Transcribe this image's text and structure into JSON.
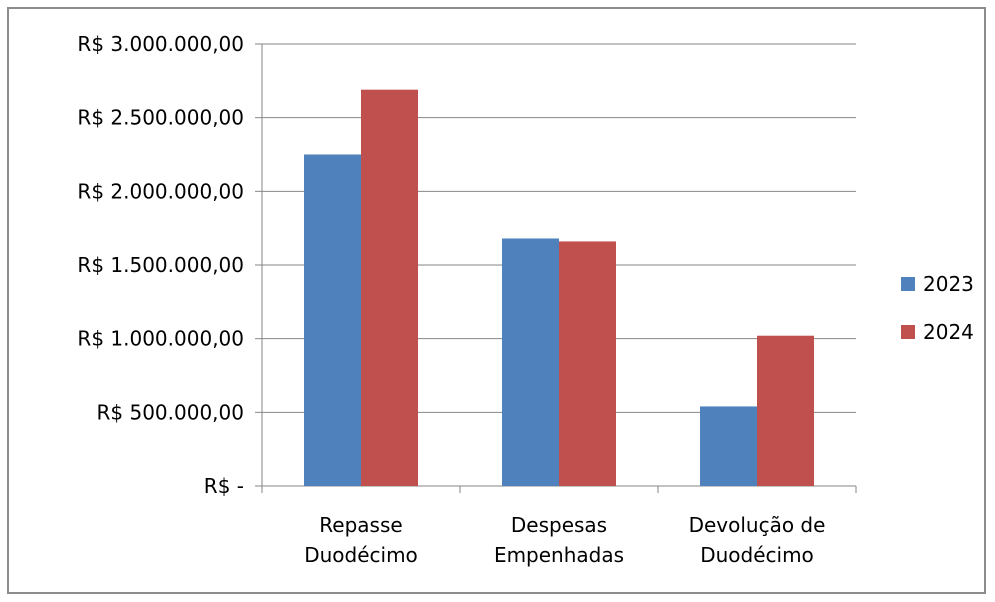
{
  "chart_data": {
    "type": "bar",
    "categories": [
      [
        "Repasse",
        "Duodécimo"
      ],
      [
        "Despesas",
        "Empenhadas"
      ],
      [
        "Devolução de",
        "Duodécimo"
      ]
    ],
    "series": [
      {
        "name": "2023",
        "color": "#4f81bd",
        "values": [
          2250000,
          1680000,
          540000
        ]
      },
      {
        "name": "2024",
        "color": "#c0504d",
        "values": [
          2690000,
          1660000,
          1020000
        ]
      }
    ],
    "ylim": [
      0,
      3000000
    ],
    "yticks": [
      0,
      500000,
      1000000,
      1500000,
      2000000,
      2500000,
      3000000
    ],
    "ytick_labels": [
      "R$ -",
      "R$ 500.000,00",
      "R$ 1.000.000,00",
      "R$ 1.500.000,00",
      "R$ 2.000.000,00",
      "R$ 2.500.000,00",
      "R$ 3.000.000,00"
    ],
    "grid": true,
    "legend_position": "right",
    "title": "",
    "xlabel": "",
    "ylabel": ""
  }
}
